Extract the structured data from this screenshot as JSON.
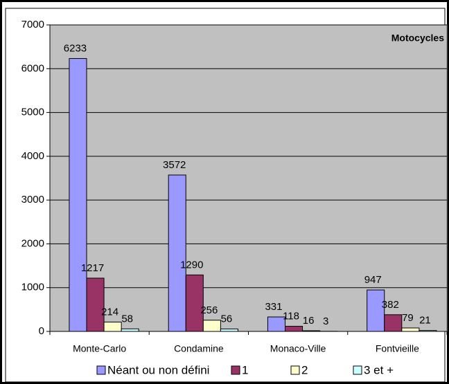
{
  "chart_data": {
    "type": "bar",
    "title": "Motocycles",
    "categories": [
      "Monte-Carlo",
      "Condamine",
      "Monaco-Ville",
      "Fontvieille"
    ],
    "series": [
      {
        "name": "Néant ou non défini",
        "color": "#9999ff",
        "values": [
          6233,
          3572,
          331,
          947
        ]
      },
      {
        "name": "1",
        "color": "#993366",
        "values": [
          1217,
          1290,
          118,
          382
        ]
      },
      {
        "name": "2",
        "color": "#ffffcc",
        "values": [
          214,
          256,
          16,
          79
        ]
      },
      {
        "name": "3 et +",
        "color": "#ccffff",
        "values": [
          58,
          56,
          3,
          21
        ]
      }
    ],
    "ylim": [
      0,
      7000
    ],
    "yticks": [
      0,
      1000,
      2000,
      3000,
      4000,
      5000,
      6000,
      7000
    ],
    "grid": true,
    "legend": "bottom",
    "plot_background": "#c0c0c0"
  }
}
